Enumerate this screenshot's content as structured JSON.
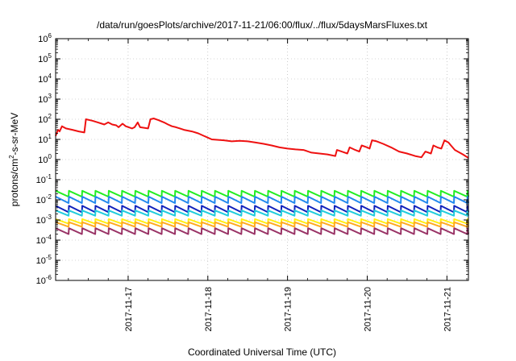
{
  "chart_data": {
    "type": "line",
    "title": "/data/run/goesPlots/archive/2017-11-21/06:00/flux/../flux/5daysMarsFluxes.txt",
    "xlabel": "Coordinated Universal Time (UTC)",
    "ylabel": {
      "base": "protons/cm",
      "sup": "2",
      "rest": "-s-sr-MeV"
    },
    "y_scale": "log",
    "ylim_exp": [
      -6,
      6
    ],
    "y_tick_exponents": [
      -6,
      -5,
      -4,
      -3,
      -2,
      -1,
      0,
      1,
      2,
      3,
      4,
      5,
      6
    ],
    "xlim_days": [
      16.09,
      21.27
    ],
    "x_ticks": [
      {
        "label": "2017-11-17",
        "day": 17.0
      },
      {
        "label": "2017-11-18",
        "day": 18.0
      },
      {
        "label": "2017-11-19",
        "day": 19.0
      },
      {
        "label": "2017-11-20",
        "day": 20.0
      },
      {
        "label": "2017-11-21",
        "day": 21.0
      }
    ],
    "grid": true,
    "legend": "none",
    "series": [
      {
        "color": "#ee1111",
        "points": [
          [
            16.09,
            15
          ],
          [
            16.12,
            30
          ],
          [
            16.14,
            25
          ],
          [
            16.17,
            45
          ],
          [
            16.22,
            35
          ],
          [
            16.3,
            30
          ],
          [
            16.38,
            25
          ],
          [
            16.45,
            22
          ],
          [
            16.47,
            100
          ],
          [
            16.55,
            85
          ],
          [
            16.62,
            70
          ],
          [
            16.67,
            60
          ],
          [
            16.7,
            55
          ],
          [
            16.75,
            70
          ],
          [
            16.8,
            55
          ],
          [
            16.85,
            50
          ],
          [
            16.88,
            40
          ],
          [
            16.93,
            60
          ],
          [
            16.97,
            45
          ],
          [
            17.05,
            35
          ],
          [
            17.08,
            40
          ],
          [
            17.12,
            70
          ],
          [
            17.15,
            40
          ],
          [
            17.25,
            35
          ],
          [
            17.28,
            100
          ],
          [
            17.32,
            110
          ],
          [
            17.38,
            90
          ],
          [
            17.45,
            70
          ],
          [
            17.5,
            55
          ],
          [
            17.55,
            45
          ],
          [
            17.6,
            40
          ],
          [
            17.65,
            35
          ],
          [
            17.7,
            30
          ],
          [
            17.8,
            25
          ],
          [
            17.88,
            20
          ],
          [
            17.95,
            15
          ],
          [
            18.05,
            10
          ],
          [
            18.2,
            9
          ],
          [
            18.3,
            8
          ],
          [
            18.4,
            8.5
          ],
          [
            18.5,
            8
          ],
          [
            18.6,
            7
          ],
          [
            18.7,
            6
          ],
          [
            18.8,
            5
          ],
          [
            18.9,
            4
          ],
          [
            19.0,
            3.5
          ],
          [
            19.1,
            3.2
          ],
          [
            19.2,
            3
          ],
          [
            19.3,
            2.2
          ],
          [
            19.4,
            2
          ],
          [
            19.5,
            1.8
          ],
          [
            19.6,
            1.5
          ],
          [
            19.62,
            3
          ],
          [
            19.68,
            2.5
          ],
          [
            19.75,
            2
          ],
          [
            19.78,
            4
          ],
          [
            19.85,
            3
          ],
          [
            19.9,
            2.5
          ],
          [
            19.93,
            5
          ],
          [
            20.0,
            4
          ],
          [
            20.03,
            3.5
          ],
          [
            20.06,
            9
          ],
          [
            20.12,
            8
          ],
          [
            20.2,
            6
          ],
          [
            20.3,
            4
          ],
          [
            20.4,
            2.5
          ],
          [
            20.5,
            2
          ],
          [
            20.6,
            1.5
          ],
          [
            20.68,
            1.3
          ],
          [
            20.73,
            2.5
          ],
          [
            20.8,
            2
          ],
          [
            20.83,
            5
          ],
          [
            20.88,
            4
          ],
          [
            20.93,
            3.5
          ],
          [
            20.97,
            9
          ],
          [
            21.02,
            7
          ],
          [
            21.05,
            5
          ],
          [
            21.1,
            3
          ],
          [
            21.2,
            1.8
          ],
          [
            21.27,
            1.2
          ]
        ]
      },
      {
        "color": "#22ee22",
        "base": 0.02,
        "amp": 1.4
      },
      {
        "color": "#2288ee",
        "base": 0.01,
        "amp": 1.45
      },
      {
        "color": "#1122bb",
        "base": 0.0035,
        "amp": 1.45
      },
      {
        "color": "#22ccdd",
        "base": 0.0022,
        "amp": 1.35
      },
      {
        "color": "#ffee11",
        "base": 0.00085,
        "amp": 1.3
      },
      {
        "color": "#ffaa22",
        "base": 0.0006,
        "amp": 1.3
      },
      {
        "color": "#993366",
        "base": 0.00028,
        "amp": 1.4
      }
    ]
  }
}
